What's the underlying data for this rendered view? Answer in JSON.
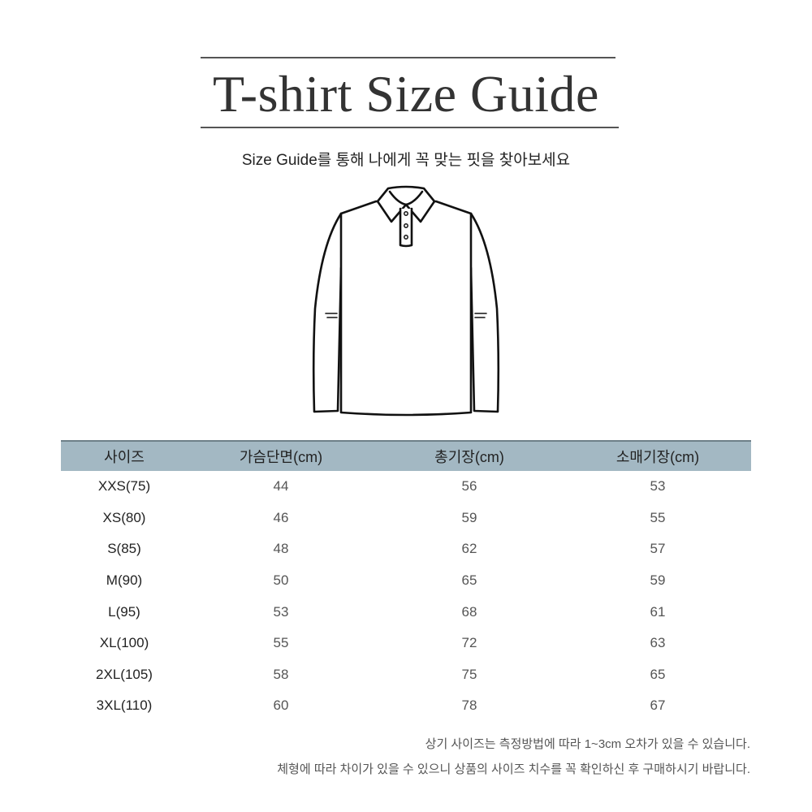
{
  "title": "T-shirt Size Guide",
  "subtitle": "Size Guide를 통해 나에게 꼭 맞는 핏을 찾아보세요",
  "illustration": "long-sleeve-polo-shirt",
  "table": {
    "header_color": "#a3b8c3",
    "headers": [
      "사이즈",
      "가슴단면(cm)",
      "총기장(cm)",
      "소매기장(cm)"
    ],
    "rows": [
      [
        "XXS(75)",
        "44",
        "56",
        "53"
      ],
      [
        "XS(80)",
        "46",
        "59",
        "55"
      ],
      [
        "S(85)",
        "48",
        "62",
        "57"
      ],
      [
        "M(90)",
        "50",
        "65",
        "59"
      ],
      [
        "L(95)",
        "53",
        "68",
        "61"
      ],
      [
        "XL(100)",
        "55",
        "72",
        "63"
      ],
      [
        "2XL(105)",
        "58",
        "75",
        "65"
      ],
      [
        "3XL(110)",
        "60",
        "78",
        "67"
      ]
    ]
  },
  "notes": [
    "상기 사이즈는 측정방법에 따라 1~3cm 오차가 있을 수 있습니다.",
    "체형에 따라 차이가 있을 수 있으니 상품의 사이즈 치수를 꼭 확인하신 후 구매하시기 바랍니다."
  ]
}
